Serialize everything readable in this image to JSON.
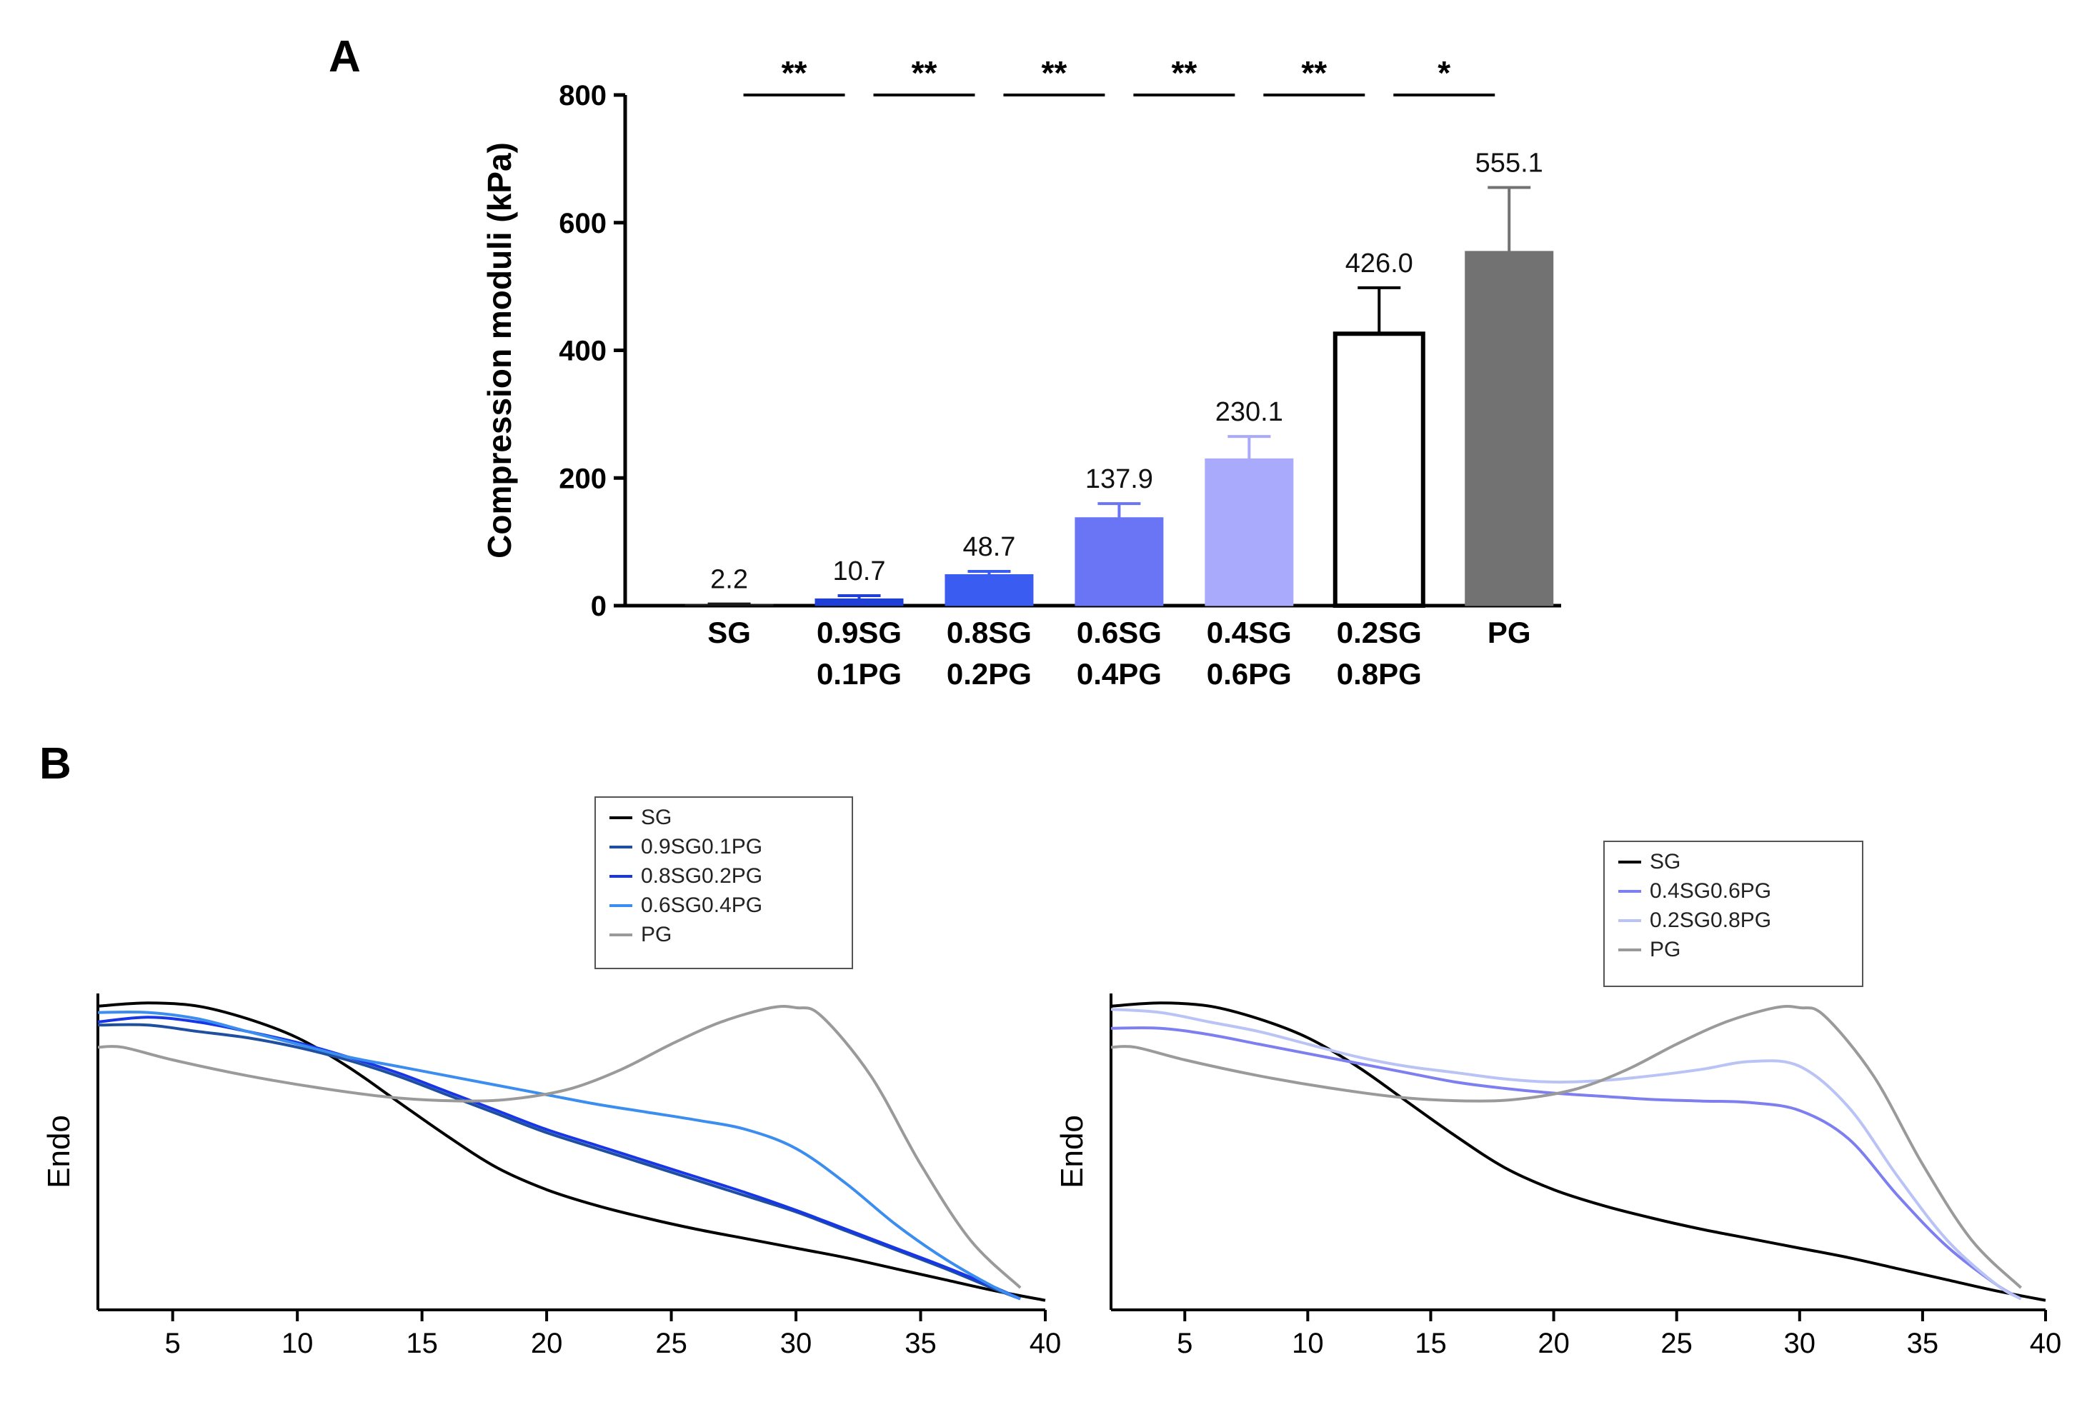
{
  "chart_data": [
    {
      "panel": "A",
      "type": "bar",
      "ylabel": "Compression moduli (kPa)",
      "ylim": [
        0,
        800
      ],
      "yticks": [
        0,
        200,
        400,
        600,
        800
      ],
      "categories": [
        [
          "SG"
        ],
        [
          "0.9SG",
          "0.1PG"
        ],
        [
          "0.8SG",
          "0.2PG"
        ],
        [
          "0.6SG",
          "0.4PG"
        ],
        [
          "0.4SG",
          "0.6PG"
        ],
        [
          "0.2SG",
          "0.8PG"
        ],
        [
          "PG"
        ]
      ],
      "values": [
        2.2,
        10.7,
        48.7,
        137.9,
        230.1,
        426.0,
        555.1
      ],
      "value_labels": [
        "2.2",
        "10.7",
        "48.7",
        "137.9",
        "230.1",
        "426.0",
        "555.1"
      ],
      "error": [
        0.5,
        5,
        5,
        22,
        35,
        72,
        100
      ],
      "colors": [
        "#1a1a1a",
        "#1f3fd6",
        "#3a5cf0",
        "#6a75f5",
        "#a9aafb",
        "#ffffff",
        "#727272"
      ],
      "significance": [
        "**",
        "**",
        "**",
        "**",
        "**",
        "*"
      ]
    },
    {
      "panel": "B",
      "type": "line",
      "ylabel": "Endo",
      "xlim": [
        2,
        40
      ],
      "xticks": [
        5,
        10,
        15,
        20,
        25,
        30,
        35,
        40
      ],
      "legend_position": "top-center",
      "series": [
        {
          "name": "SG",
          "color": "#000000",
          "x": [
            2,
            4,
            6,
            8,
            10,
            12,
            14,
            16,
            18,
            20,
            22,
            24,
            26,
            28,
            30,
            32,
            34,
            36,
            38,
            40
          ],
          "y": [
            0.96,
            0.97,
            0.96,
            0.92,
            0.86,
            0.77,
            0.66,
            0.55,
            0.45,
            0.38,
            0.33,
            0.29,
            0.255,
            0.225,
            0.195,
            0.165,
            0.13,
            0.095,
            0.06,
            0.03
          ]
        },
        {
          "name": "0.9SG0.1PG",
          "color": "#1f4fa0",
          "x": [
            2,
            4,
            6,
            8,
            10,
            12,
            14,
            16,
            18,
            20,
            22,
            24,
            26,
            28,
            30,
            32,
            34,
            36,
            38,
            39
          ],
          "y": [
            0.9,
            0.9,
            0.88,
            0.86,
            0.83,
            0.79,
            0.74,
            0.68,
            0.62,
            0.56,
            0.51,
            0.46,
            0.41,
            0.36,
            0.31,
            0.25,
            0.19,
            0.13,
            0.065,
            0.035
          ]
        },
        {
          "name": "0.8SG0.2PG",
          "color": "#1736e6",
          "x": [
            2,
            4,
            6,
            8,
            10,
            12,
            14,
            16,
            18,
            20,
            22,
            24,
            26,
            28,
            30,
            32,
            34,
            36,
            38,
            39
          ],
          "y": [
            0.91,
            0.925,
            0.91,
            0.88,
            0.845,
            0.8,
            0.75,
            0.69,
            0.63,
            0.57,
            0.52,
            0.47,
            0.42,
            0.37,
            0.315,
            0.255,
            0.195,
            0.135,
            0.07,
            0.035
          ]
        },
        {
          "name": "0.6SG0.4PG",
          "color": "#3c8df0",
          "x": [
            2,
            4,
            6,
            8,
            10,
            12,
            14,
            16,
            18,
            20,
            22,
            24,
            26,
            28,
            30,
            32,
            34,
            36,
            38,
            39
          ],
          "y": [
            0.94,
            0.94,
            0.92,
            0.88,
            0.84,
            0.8,
            0.77,
            0.74,
            0.71,
            0.68,
            0.65,
            0.625,
            0.6,
            0.57,
            0.51,
            0.4,
            0.27,
            0.16,
            0.07,
            0.035
          ]
        },
        {
          "name": "PG",
          "color": "#9a9a9a",
          "x": [
            2,
            3,
            5,
            8,
            11,
            14,
            17,
            19,
            21,
            23,
            25,
            27,
            29,
            30,
            31,
            33,
            35,
            37,
            39
          ],
          "y": [
            0.83,
            0.83,
            0.79,
            0.74,
            0.7,
            0.67,
            0.66,
            0.67,
            0.7,
            0.76,
            0.84,
            0.91,
            0.955,
            0.955,
            0.93,
            0.74,
            0.46,
            0.22,
            0.07
          ]
        }
      ]
    },
    {
      "panel": "",
      "type": "line",
      "ylabel": "Endo",
      "xlim": [
        2,
        40
      ],
      "xticks": [
        5,
        10,
        15,
        20,
        25,
        30,
        35,
        40
      ],
      "legend_position": "top-right",
      "series": [
        {
          "name": "SG",
          "color": "#000000",
          "x": [
            2,
            4,
            6,
            8,
            10,
            12,
            14,
            16,
            18,
            20,
            22,
            24,
            26,
            28,
            30,
            32,
            34,
            36,
            38,
            40
          ],
          "y": [
            0.96,
            0.97,
            0.96,
            0.92,
            0.86,
            0.77,
            0.66,
            0.55,
            0.45,
            0.38,
            0.33,
            0.29,
            0.255,
            0.225,
            0.195,
            0.165,
            0.13,
            0.095,
            0.06,
            0.03
          ]
        },
        {
          "name": "0.4SG0.6PG",
          "color": "#7d7ff0",
          "x": [
            2,
            4,
            6,
            8,
            10,
            12,
            14,
            16,
            18,
            20,
            22,
            24,
            26,
            28,
            30,
            32,
            34,
            36,
            38,
            39
          ],
          "y": [
            0.89,
            0.89,
            0.87,
            0.84,
            0.81,
            0.78,
            0.75,
            0.72,
            0.7,
            0.685,
            0.675,
            0.665,
            0.66,
            0.655,
            0.63,
            0.54,
            0.36,
            0.2,
            0.08,
            0.035
          ]
        },
        {
          "name": "0.2SG0.8PG",
          "color": "#bac3f6",
          "x": [
            2,
            4,
            6,
            8,
            10,
            12,
            14,
            16,
            18,
            20,
            22,
            24,
            26,
            28,
            30,
            32,
            34,
            36,
            38,
            39
          ],
          "y": [
            0.95,
            0.94,
            0.91,
            0.88,
            0.84,
            0.8,
            0.77,
            0.75,
            0.73,
            0.72,
            0.725,
            0.74,
            0.76,
            0.785,
            0.77,
            0.64,
            0.42,
            0.22,
            0.08,
            0.035
          ]
        },
        {
          "name": "PG",
          "color": "#9a9a9a",
          "x": [
            2,
            3,
            5,
            8,
            11,
            14,
            17,
            19,
            21,
            23,
            25,
            27,
            29,
            30,
            31,
            33,
            35,
            37,
            39
          ],
          "y": [
            0.83,
            0.83,
            0.79,
            0.74,
            0.7,
            0.67,
            0.66,
            0.67,
            0.7,
            0.76,
            0.84,
            0.91,
            0.955,
            0.955,
            0.93,
            0.74,
            0.46,
            0.22,
            0.07
          ]
        }
      ]
    }
  ]
}
